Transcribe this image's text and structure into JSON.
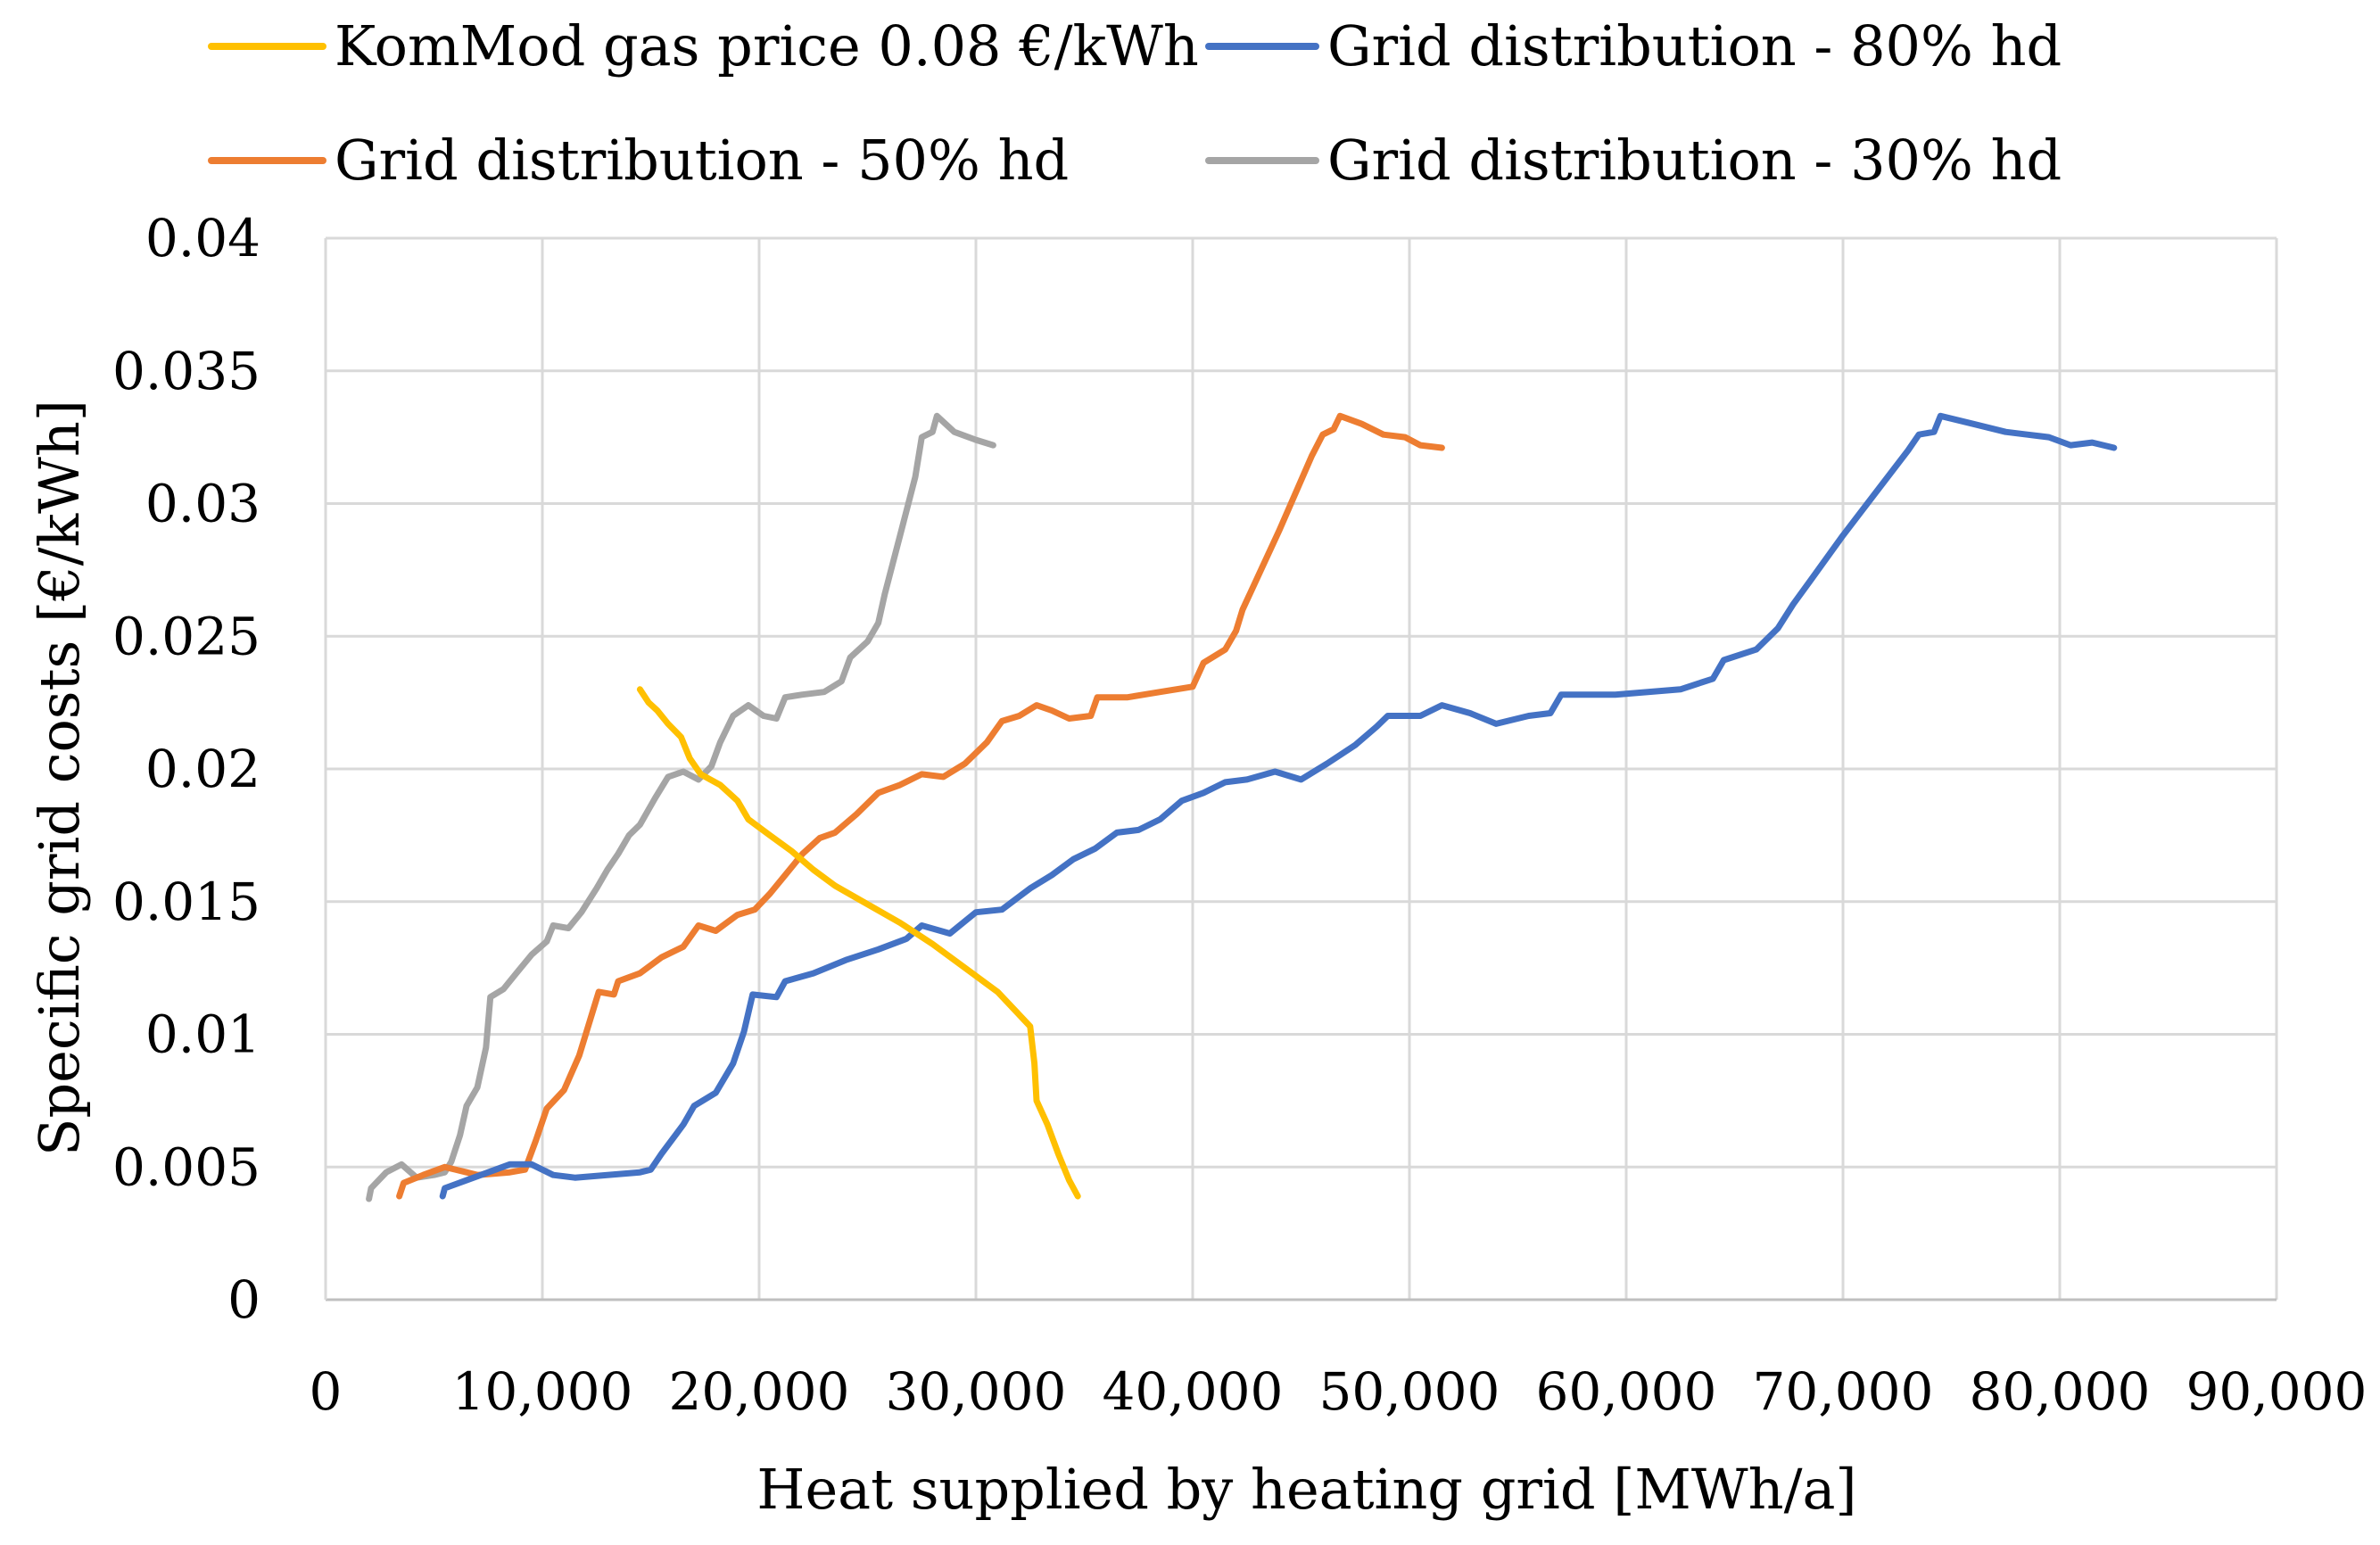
{
  "chart_data": {
    "type": "line",
    "title": "",
    "xlabel": "Heat supplied by heating grid [MWh/a]",
    "ylabel": "Specific grid costs [€/kWh]",
    "xlim": [
      0,
      90000
    ],
    "ylim": [
      0,
      0.04
    ],
    "grid": true,
    "legend_position": "top",
    "x_ticks": [
      "0",
      "10,000",
      "20,000",
      "30,000",
      "40,000",
      "50,000",
      "60,000",
      "70,000",
      "80,000",
      "90,000"
    ],
    "y_ticks": [
      "0",
      "0.005",
      "0.01",
      "0.015",
      "0.02",
      "0.025",
      "0.03",
      "0.035",
      "0.04"
    ],
    "series": [
      {
        "name": "KomMod gas price 0.08 €/kWh",
        "color": "#FFC000",
        "points": [
          [
            14500,
            0.023
          ],
          [
            14900,
            0.0225
          ],
          [
            15300,
            0.0222
          ],
          [
            15800,
            0.0217
          ],
          [
            16400,
            0.0212
          ],
          [
            16800,
            0.0204
          ],
          [
            17300,
            0.0198
          ],
          [
            18200,
            0.0194
          ],
          [
            19000,
            0.0188
          ],
          [
            19500,
            0.0181
          ],
          [
            20500,
            0.0175
          ],
          [
            21500,
            0.0169
          ],
          [
            22500,
            0.0162
          ],
          [
            23500,
            0.0156
          ],
          [
            25000,
            0.0149
          ],
          [
            26500,
            0.0142
          ],
          [
            28000,
            0.0134
          ],
          [
            29500,
            0.0125
          ],
          [
            31000,
            0.0116
          ],
          [
            32500,
            0.0103
          ],
          [
            32700,
            0.0089
          ],
          [
            32800,
            0.0075
          ],
          [
            33300,
            0.0066
          ],
          [
            33800,
            0.0055
          ],
          [
            34300,
            0.0045
          ],
          [
            34700,
            0.0039
          ]
        ]
      },
      {
        "name": "Grid distribution - 80% hd",
        "color": "#4472C4",
        "points": [
          [
            5400,
            0.0039
          ],
          [
            5500,
            0.0042
          ],
          [
            6500,
            0.0045
          ],
          [
            7500,
            0.0048
          ],
          [
            8500,
            0.0051
          ],
          [
            9500,
            0.0051
          ],
          [
            10500,
            0.0047
          ],
          [
            11500,
            0.0046
          ],
          [
            13000,
            0.0047
          ],
          [
            14500,
            0.0048
          ],
          [
            15000,
            0.0049
          ],
          [
            15500,
            0.0055
          ],
          [
            16500,
            0.0066
          ],
          [
            17000,
            0.0073
          ],
          [
            18000,
            0.0078
          ],
          [
            18800,
            0.0089
          ],
          [
            19300,
            0.0101
          ],
          [
            19700,
            0.0115
          ],
          [
            20800,
            0.0114
          ],
          [
            21200,
            0.012
          ],
          [
            22500,
            0.0123
          ],
          [
            24000,
            0.0128
          ],
          [
            25500,
            0.0132
          ],
          [
            26800,
            0.0136
          ],
          [
            27500,
            0.0141
          ],
          [
            28800,
            0.0138
          ],
          [
            30000,
            0.0146
          ],
          [
            31200,
            0.0147
          ],
          [
            32500,
            0.0155
          ],
          [
            33500,
            0.016
          ],
          [
            34500,
            0.0166
          ],
          [
            35500,
            0.017
          ],
          [
            36500,
            0.0176
          ],
          [
            37500,
            0.0177
          ],
          [
            38500,
            0.0181
          ],
          [
            39500,
            0.0188
          ],
          [
            40500,
            0.0191
          ],
          [
            41500,
            0.0195
          ],
          [
            42500,
            0.0196
          ],
          [
            43800,
            0.0199
          ],
          [
            45000,
            0.0196
          ],
          [
            46200,
            0.0202
          ],
          [
            47500,
            0.0209
          ],
          [
            48500,
            0.0216
          ],
          [
            49000,
            0.022
          ],
          [
            50500,
            0.022
          ],
          [
            51500,
            0.0224
          ],
          [
            52800,
            0.0221
          ],
          [
            54000,
            0.0217
          ],
          [
            55500,
            0.022
          ],
          [
            56500,
            0.0221
          ],
          [
            57000,
            0.0228
          ],
          [
            58500,
            0.0228
          ],
          [
            59500,
            0.0228
          ],
          [
            61000,
            0.0229
          ],
          [
            62500,
            0.023
          ],
          [
            64000,
            0.0234
          ],
          [
            64500,
            0.0241
          ],
          [
            66000,
            0.0245
          ],
          [
            67000,
            0.0253
          ],
          [
            67700,
            0.0262
          ],
          [
            68500,
            0.0271
          ],
          [
            70000,
            0.0288
          ],
          [
            71500,
            0.0304
          ],
          [
            73000,
            0.032
          ],
          [
            73500,
            0.0326
          ],
          [
            74200,
            0.0327
          ],
          [
            74500,
            0.0333
          ],
          [
            76000,
            0.033
          ],
          [
            77500,
            0.0327
          ],
          [
            78500,
            0.0326
          ],
          [
            79500,
            0.0325
          ],
          [
            80500,
            0.0322
          ],
          [
            81500,
            0.0323
          ],
          [
            82500,
            0.0321
          ]
        ]
      },
      {
        "name": "Grid distribution - 50% hd",
        "color": "#ED7D31",
        "points": [
          [
            3400,
            0.0039
          ],
          [
            3600,
            0.0044
          ],
          [
            4500,
            0.0047
          ],
          [
            5500,
            0.005
          ],
          [
            6500,
            0.0048
          ],
          [
            7000,
            0.0047
          ],
          [
            8500,
            0.0048
          ],
          [
            9200,
            0.0049
          ],
          [
            9700,
            0.006
          ],
          [
            10200,
            0.0072
          ],
          [
            11000,
            0.0079
          ],
          [
            11700,
            0.0092
          ],
          [
            12300,
            0.0108
          ],
          [
            12600,
            0.0116
          ],
          [
            13300,
            0.0115
          ],
          [
            13500,
            0.012
          ],
          [
            14500,
            0.0123
          ],
          [
            15500,
            0.0129
          ],
          [
            16500,
            0.0133
          ],
          [
            17200,
            0.0141
          ],
          [
            18000,
            0.0139
          ],
          [
            19000,
            0.0145
          ],
          [
            19800,
            0.0147
          ],
          [
            20500,
            0.0153
          ],
          [
            21200,
            0.016
          ],
          [
            22000,
            0.0168
          ],
          [
            22800,
            0.0174
          ],
          [
            23500,
            0.0176
          ],
          [
            24500,
            0.0183
          ],
          [
            25500,
            0.0191
          ],
          [
            26500,
            0.0194
          ],
          [
            27500,
            0.0198
          ],
          [
            28500,
            0.0197
          ],
          [
            29500,
            0.0202
          ],
          [
            30500,
            0.021
          ],
          [
            31200,
            0.0218
          ],
          [
            32000,
            0.022
          ],
          [
            32800,
            0.0224
          ],
          [
            33500,
            0.0222
          ],
          [
            34300,
            0.0219
          ],
          [
            35300,
            0.022
          ],
          [
            35600,
            0.0227
          ],
          [
            37000,
            0.0227
          ],
          [
            38500,
            0.0229
          ],
          [
            40000,
            0.0231
          ],
          [
            40500,
            0.024
          ],
          [
            41500,
            0.0245
          ],
          [
            42000,
            0.0252
          ],
          [
            42300,
            0.026
          ],
          [
            44000,
            0.029
          ],
          [
            45500,
            0.0318
          ],
          [
            46000,
            0.0326
          ],
          [
            46500,
            0.0328
          ],
          [
            46800,
            0.0333
          ],
          [
            47800,
            0.033
          ],
          [
            48800,
            0.0326
          ],
          [
            49800,
            0.0325
          ],
          [
            50500,
            0.0322
          ],
          [
            51500,
            0.0321
          ]
        ]
      },
      {
        "name": "Grid distribution - 30% hd",
        "color": "#A5A5A5",
        "points": [
          [
            2000,
            0.0038
          ],
          [
            2100,
            0.0042
          ],
          [
            2800,
            0.0048
          ],
          [
            3500,
            0.0051
          ],
          [
            4200,
            0.0046
          ],
          [
            5000,
            0.0047
          ],
          [
            5500,
            0.0048
          ],
          [
            5800,
            0.0052
          ],
          [
            6200,
            0.0062
          ],
          [
            6500,
            0.0073
          ],
          [
            7000,
            0.008
          ],
          [
            7400,
            0.0095
          ],
          [
            7600,
            0.0114
          ],
          [
            8200,
            0.0117
          ],
          [
            8800,
            0.0123
          ],
          [
            9500,
            0.013
          ],
          [
            10200,
            0.0135
          ],
          [
            10500,
            0.0141
          ],
          [
            11200,
            0.014
          ],
          [
            11800,
            0.0146
          ],
          [
            12500,
            0.0155
          ],
          [
            13000,
            0.0162
          ],
          [
            13500,
            0.0168
          ],
          [
            14000,
            0.0175
          ],
          [
            14500,
            0.0179
          ],
          [
            15200,
            0.0189
          ],
          [
            15800,
            0.0197
          ],
          [
            16500,
            0.0199
          ],
          [
            17200,
            0.0196
          ],
          [
            17800,
            0.0201
          ],
          [
            18200,
            0.021
          ],
          [
            18800,
            0.022
          ],
          [
            19500,
            0.0224
          ],
          [
            20200,
            0.022
          ],
          [
            20800,
            0.0219
          ],
          [
            21200,
            0.0227
          ],
          [
            22000,
            0.0228
          ],
          [
            23000,
            0.0229
          ],
          [
            23800,
            0.0233
          ],
          [
            24200,
            0.0242
          ],
          [
            25000,
            0.0248
          ],
          [
            25500,
            0.0255
          ],
          [
            25800,
            0.0266
          ],
          [
            26500,
            0.0288
          ],
          [
            27200,
            0.031
          ],
          [
            27500,
            0.0325
          ],
          [
            28000,
            0.0327
          ],
          [
            28200,
            0.0333
          ],
          [
            29000,
            0.0327
          ],
          [
            30000,
            0.0324
          ],
          [
            30800,
            0.0322
          ]
        ]
      }
    ]
  }
}
